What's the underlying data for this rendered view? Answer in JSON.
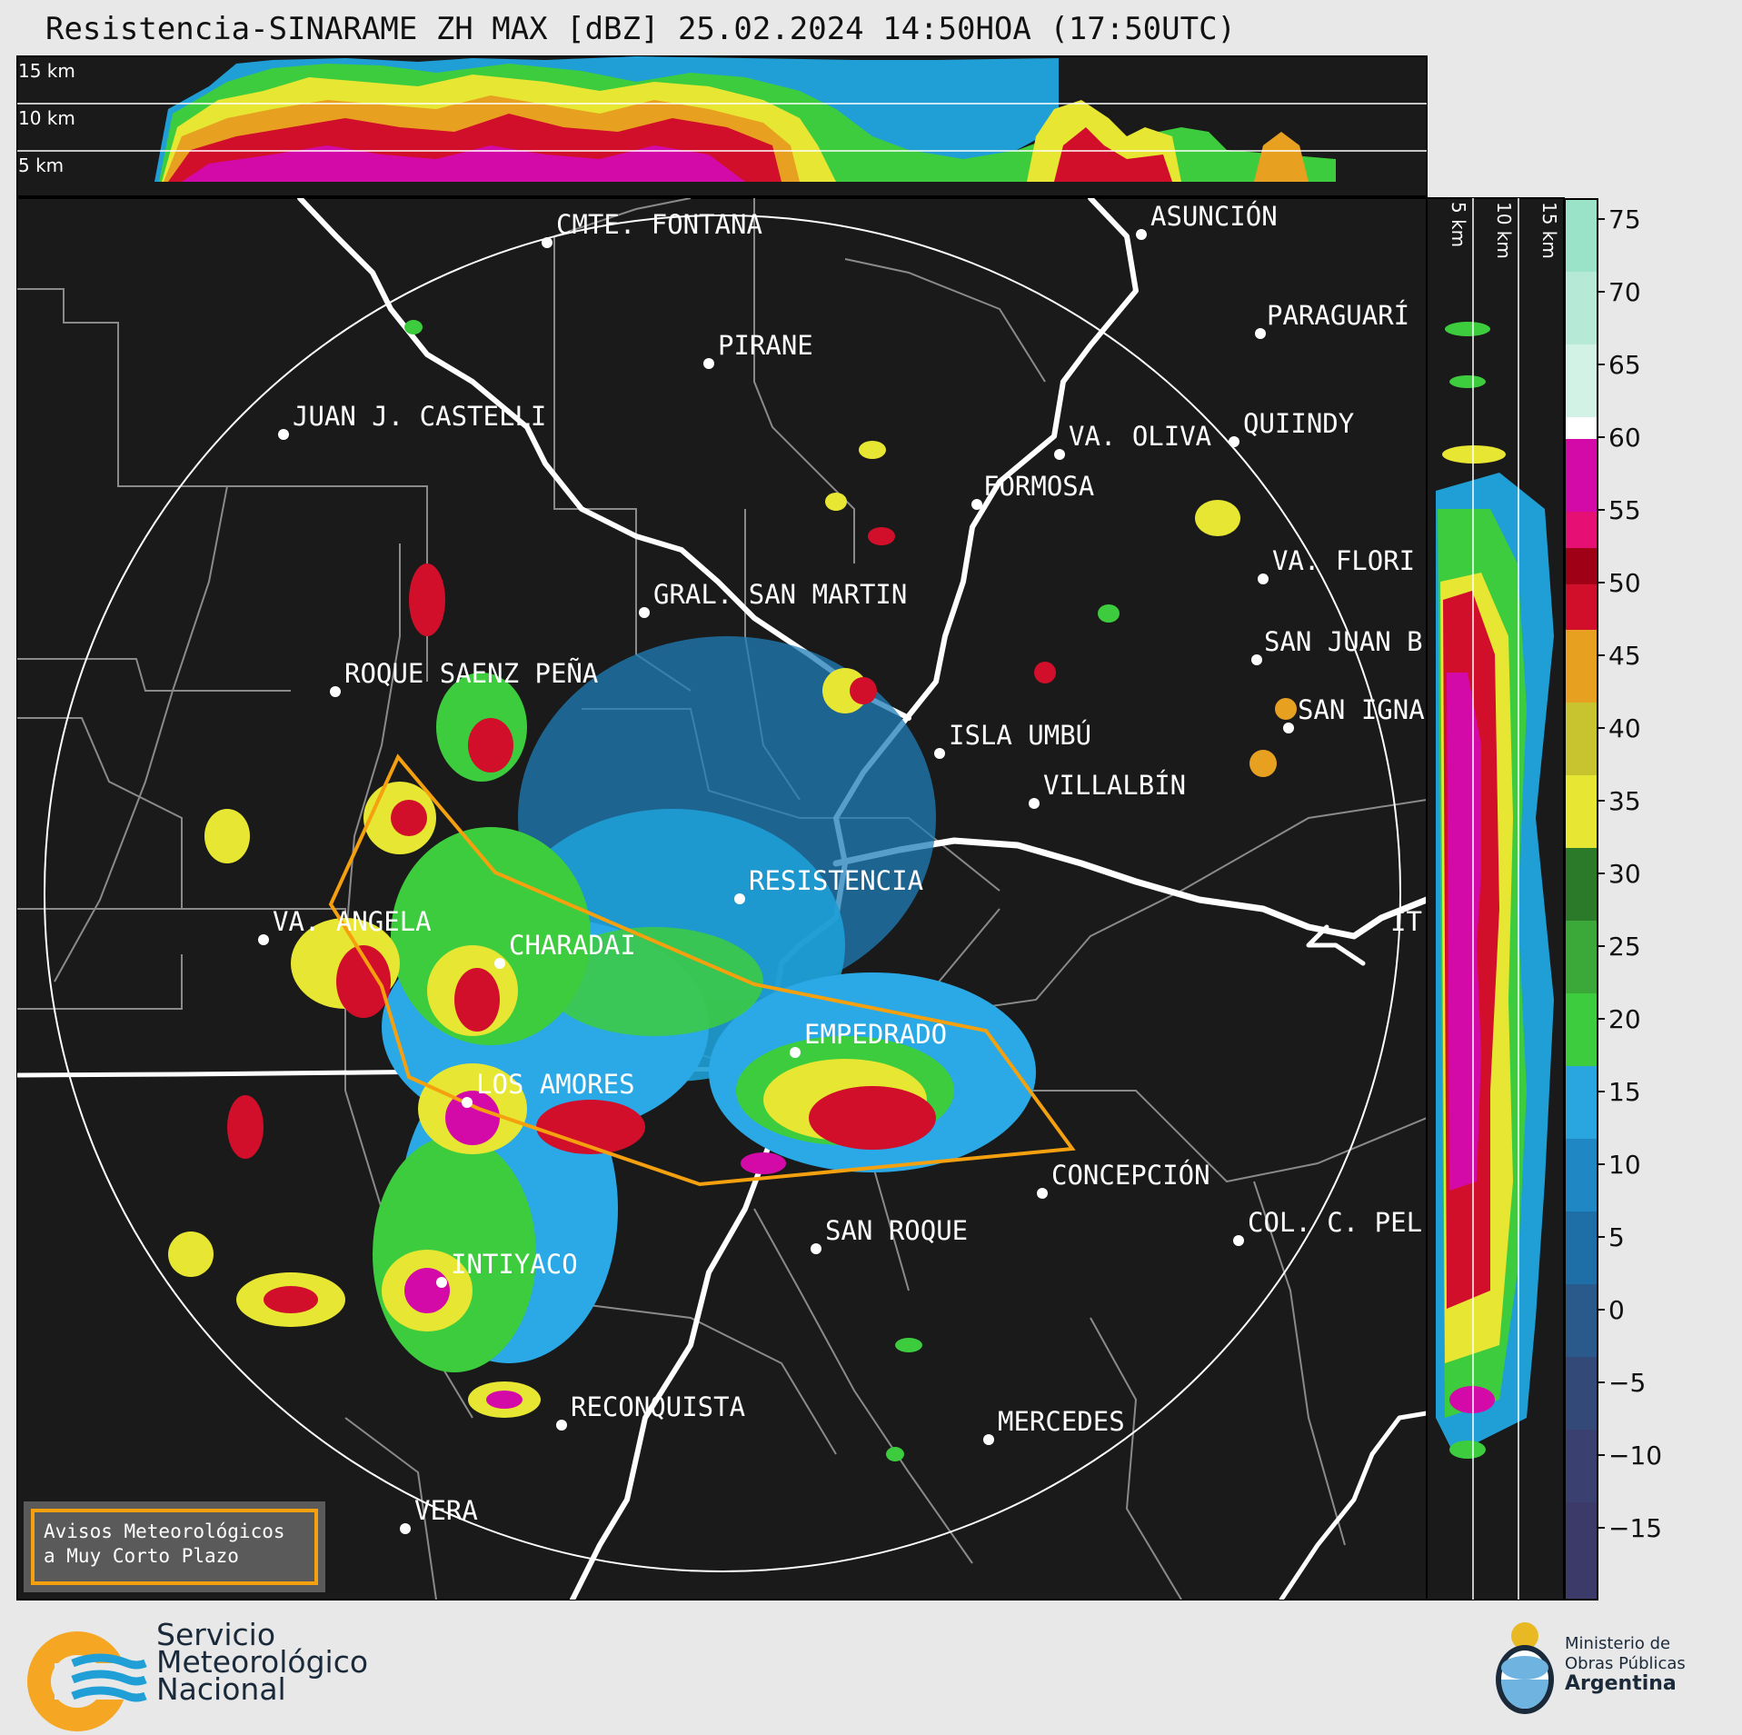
{
  "title": "Resistencia-SINARAME ZH MAX [dBZ] 25.02.2024 14:50HOA (17:50UTC)",
  "height_panel": {
    "top_labels": [
      "15 km",
      "10 km",
      "5 km"
    ],
    "side_labels": [
      "5 km",
      "10 km",
      "15 km"
    ]
  },
  "cities": [
    {
      "name": "CMTE. FONTANA"
    },
    {
      "name": "ASUNCIÓN"
    },
    {
      "name": "PARAGUARÍ"
    },
    {
      "name": "PIRANE"
    },
    {
      "name": "JUAN J. CASTELLI"
    },
    {
      "name": "VA. OLIVA"
    },
    {
      "name": "QUIINDY"
    },
    {
      "name": "FORMOSA"
    },
    {
      "name": "VA. FLORI"
    },
    {
      "name": "GRAL. SAN MARTIN"
    },
    {
      "name": "SAN JUAN B"
    },
    {
      "name": "ROQUE SAENZ PEÑA"
    },
    {
      "name": "SAN IGNA"
    },
    {
      "name": "ISLA UMBÚ"
    },
    {
      "name": "VILLALBÍN"
    },
    {
      "name": "RESISTENCIA"
    },
    {
      "name": "VA. ANGELA"
    },
    {
      "name": "CHARADAI"
    },
    {
      "name": "IT"
    },
    {
      "name": "EMPEDRADO"
    },
    {
      "name": "LOS AMORES"
    },
    {
      "name": "CONCEPCIÓN"
    },
    {
      "name": "SAN ROQUE"
    },
    {
      "name": "COL. C. PEL"
    },
    {
      "name": "INTIYACO"
    },
    {
      "name": "RECONQUISTA"
    },
    {
      "name": "MERCEDES"
    },
    {
      "name": "VERA"
    }
  ],
  "colorbar": {
    "unit": "dBZ",
    "ticks": [
      "75",
      "70",
      "65",
      "60",
      "55",
      "50",
      "45",
      "40",
      "35",
      "30",
      "25",
      "20",
      "15",
      "10",
      "5",
      "0",
      "−5",
      "−10",
      "−15"
    ]
  },
  "badge": {
    "line1": "Avisos Meteorológicos",
    "line2": "a Muy Corto Plazo"
  },
  "footer": {
    "smn": [
      "Servicio",
      "Meteorológico",
      "Nacional"
    ],
    "ministry": [
      "Ministerio de",
      "Obras Públicas",
      "Argentina"
    ]
  },
  "colors": {
    "warning_polygon": "#f5a00f",
    "map_background": "#1a1a1a",
    "borders": "#8a8a8a",
    "rivers": "#ffffff"
  }
}
